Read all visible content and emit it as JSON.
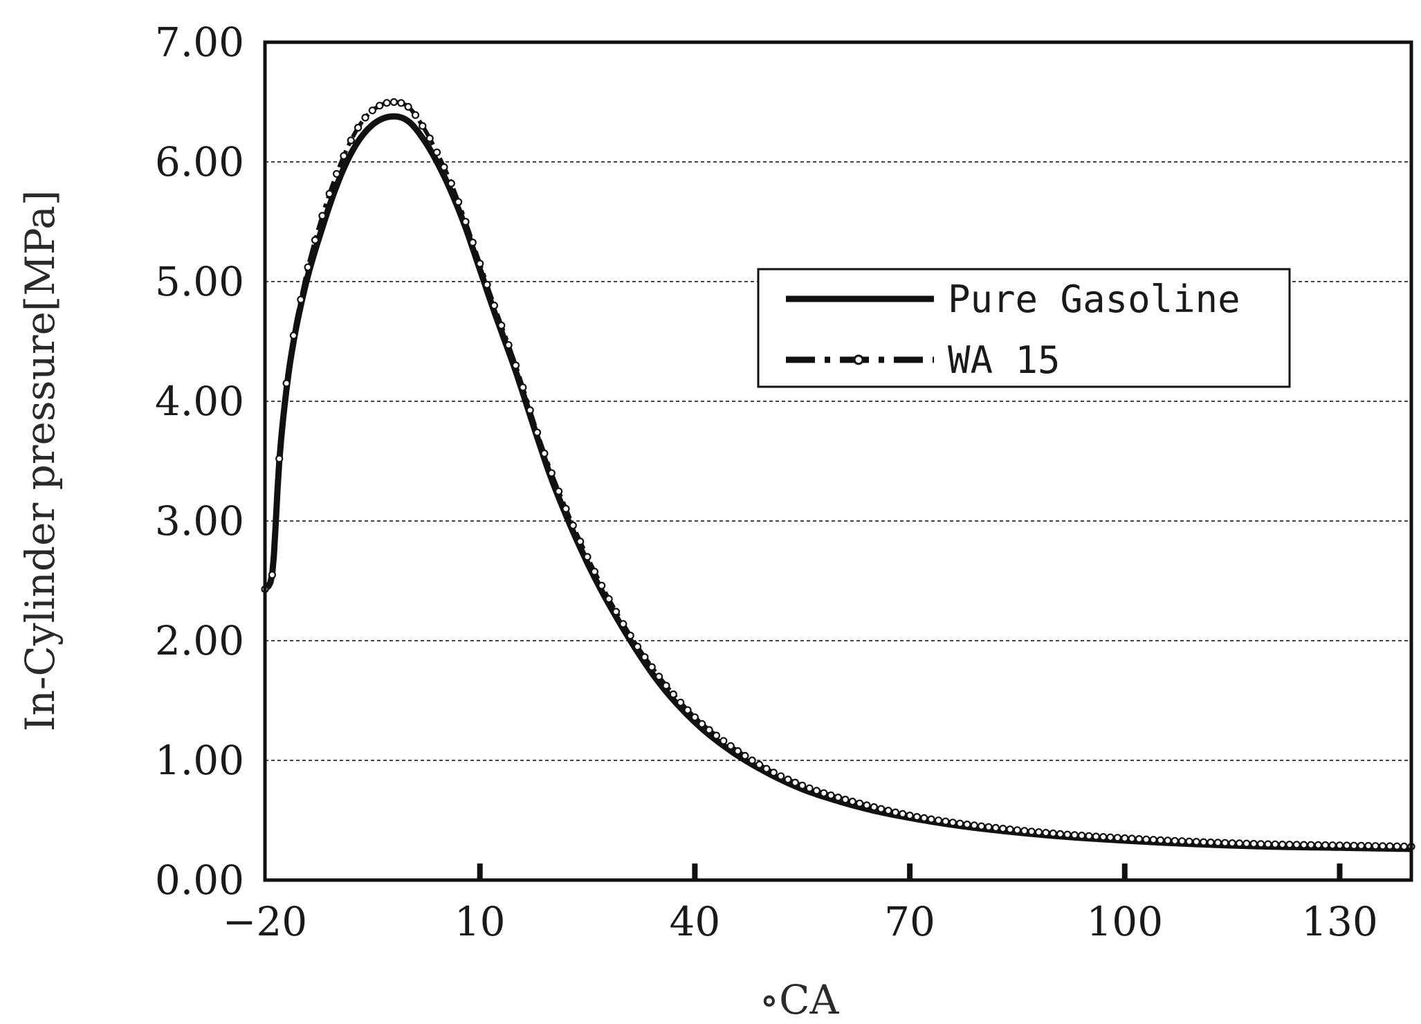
{
  "chart_data": {
    "type": "line",
    "title": "",
    "xlabel": "∘CA",
    "ylabel": "In-Cylinder pressure[MPa]",
    "xlim": [
      -20,
      140
    ],
    "ylim": [
      0,
      7
    ],
    "x_ticks": [
      -20,
      10,
      40,
      70,
      100,
      130
    ],
    "x_tick_labels": [
      "−20",
      "10",
      "40",
      "70",
      "100",
      "130"
    ],
    "y_ticks": [
      0,
      1,
      2,
      3,
      4,
      5,
      6,
      7
    ],
    "y_tick_labels": [
      "0.00",
      "1.00",
      "2.00",
      "3.00",
      "4.00",
      "5.00",
      "6.00",
      "7.00"
    ],
    "grid": "horizontal dotted",
    "legend_position": "upper-right",
    "series": [
      {
        "name": "Pure Gasoline",
        "style": "solid",
        "color": "#111111",
        "x": [
          -20,
          -19,
          -18,
          -17,
          -16,
          -15,
          -14,
          -12,
          -10,
          -8,
          -6,
          -4,
          -2,
          0,
          2,
          4,
          6,
          8,
          10,
          12,
          15,
          18,
          20,
          25,
          30,
          35,
          40,
          45,
          50,
          55,
          60,
          65,
          70,
          75,
          80,
          90,
          100,
          110,
          120,
          130,
          140
        ],
        "y": [
          2.43,
          2.55,
          3.5,
          4.1,
          4.5,
          4.8,
          5.05,
          5.45,
          5.8,
          6.07,
          6.25,
          6.35,
          6.38,
          6.34,
          6.2,
          6.0,
          5.75,
          5.45,
          5.1,
          4.75,
          4.25,
          3.7,
          3.35,
          2.65,
          2.1,
          1.65,
          1.32,
          1.08,
          0.9,
          0.76,
          0.66,
          0.58,
          0.52,
          0.47,
          0.43,
          0.37,
          0.33,
          0.3,
          0.28,
          0.27,
          0.26
        ]
      },
      {
        "name": "WA 15",
        "style": "dash-dot with circle markers",
        "color": "#111111",
        "x": [
          -20,
          -19,
          -18,
          -17,
          -16,
          -15,
          -14,
          -12,
          -10,
          -8,
          -6,
          -4,
          -2,
          0,
          2,
          4,
          6,
          8,
          10,
          12,
          15,
          18,
          20,
          25,
          30,
          35,
          40,
          45,
          50,
          55,
          60,
          65,
          70,
          75,
          80,
          90,
          100,
          110,
          120,
          130,
          140
        ],
        "y": [
          2.43,
          2.55,
          3.52,
          4.15,
          4.55,
          4.85,
          5.12,
          5.55,
          5.9,
          6.18,
          6.37,
          6.47,
          6.5,
          6.46,
          6.3,
          6.08,
          5.82,
          5.5,
          5.15,
          4.8,
          4.3,
          3.74,
          3.4,
          2.7,
          2.14,
          1.7,
          1.36,
          1.12,
          0.93,
          0.79,
          0.69,
          0.61,
          0.54,
          0.49,
          0.45,
          0.39,
          0.35,
          0.32,
          0.3,
          0.29,
          0.28
        ]
      }
    ]
  }
}
